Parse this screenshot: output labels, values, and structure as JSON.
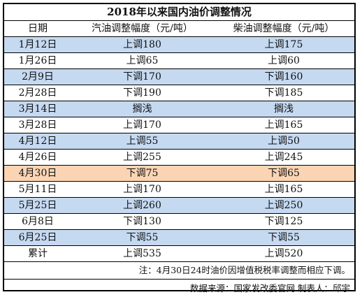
{
  "title": "2018年以来国内油价调整情况",
  "headers": [
    "日期",
    "汽油调整幅度（元/吨）",
    "柴油调整幅度（元/吨）"
  ],
  "rows": [
    {
      "date": "1月12日",
      "gasoline": "上调180",
      "diesel": "上调175",
      "color": "#c5d9f1"
    },
    {
      "date": "1月26日",
      "gasoline": "上调65",
      "diesel": "上调60",
      "color": "#ffffff"
    },
    {
      "date": "2月9日",
      "gasoline": "下调170",
      "diesel": "下调160",
      "color": "#c5d9f1"
    },
    {
      "date": "2月28日",
      "gasoline": "下调190",
      "diesel": "下调185",
      "color": "#ffffff"
    },
    {
      "date": "3月14日",
      "gasoline": "搁浅",
      "diesel": "搁浅",
      "color": "#c5d9f1"
    },
    {
      "date": "3月28日",
      "gasoline": "上调170",
      "diesel": "上调165",
      "color": "#ffffff"
    },
    {
      "date": "4月12日",
      "gasoline": "上调55",
      "diesel": "上调50",
      "color": "#c5d9f1"
    },
    {
      "date": "4月26日",
      "gasoline": "上调255",
      "diesel": "上调245",
      "color": "#ffffff"
    },
    {
      "date": "4月30日",
      "gasoline": "下调75",
      "diesel": "下调65",
      "color": "#fbd4b4"
    },
    {
      "date": "5月11日",
      "gasoline": "上调170",
      "diesel": "上调165",
      "color": "#ffffff"
    },
    {
      "date": "5月25日",
      "gasoline": "上调260",
      "diesel": "上调250",
      "color": "#c5d9f1"
    },
    {
      "date": "6月8日",
      "gasoline": "下调130",
      "diesel": "下调125",
      "color": "#ffffff"
    },
    {
      "date": "6月25日",
      "gasoline": "下调55",
      "diesel": "下调55",
      "color": "#c5d9f1"
    }
  ],
  "total": {
    "date": "累计",
    "gasoline": "上调535",
    "diesel": "上调520"
  },
  "note": "注：4月30日24时油价因增值税税率调整而相应下调。",
  "source": "数据来源：国家发改委官网  制表人：邱宇"
}
